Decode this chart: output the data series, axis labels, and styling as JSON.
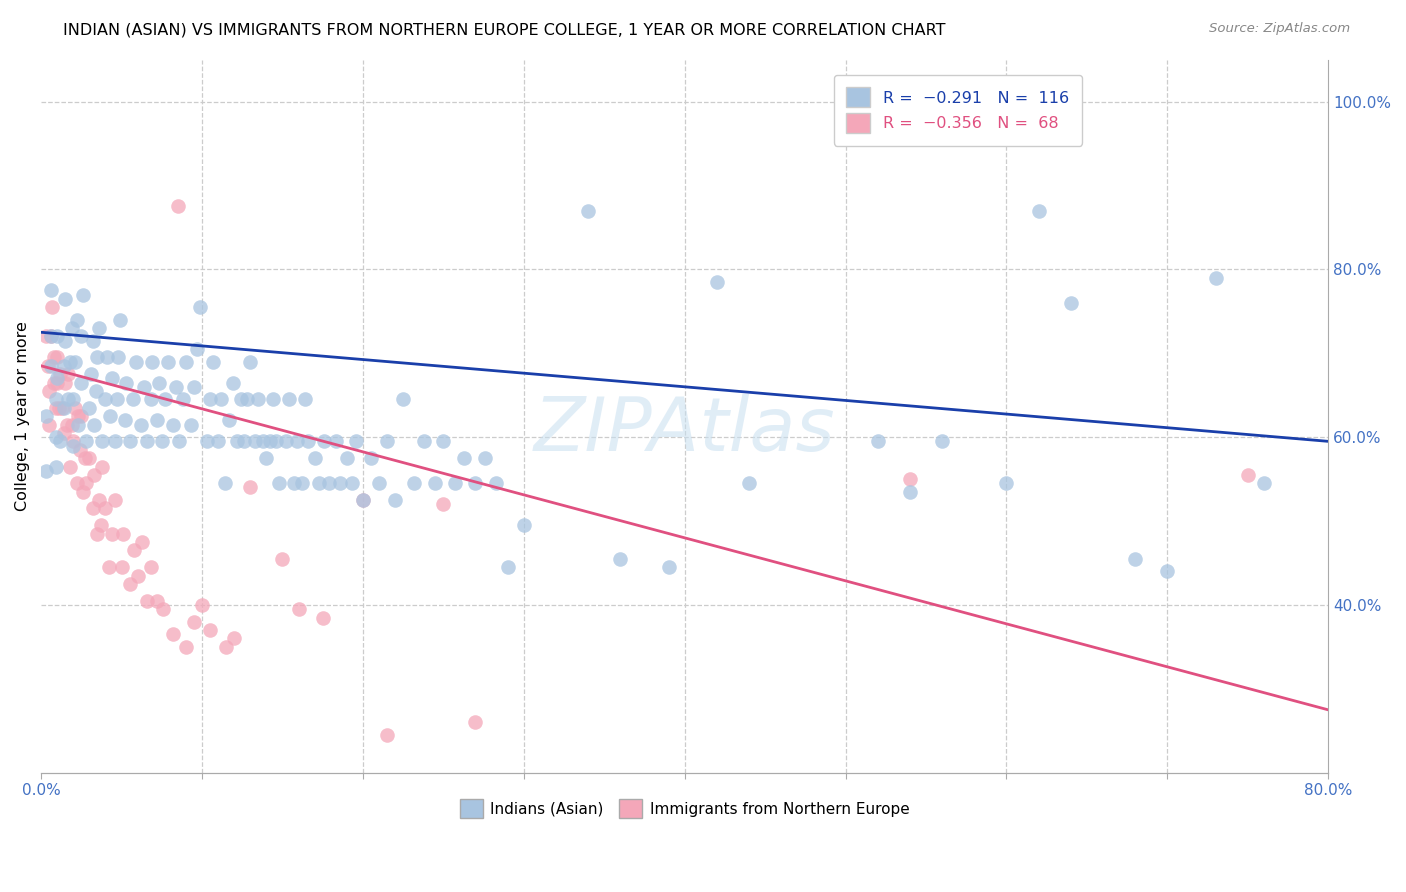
{
  "title": "INDIAN (ASIAN) VS IMMIGRANTS FROM NORTHERN EUROPE COLLEGE, 1 YEAR OR MORE CORRELATION CHART",
  "source": "Source: ZipAtlas.com",
  "ylabel": "College, 1 year or more",
  "xlim": [
    0.0,
    0.8
  ],
  "ylim": [
    0.2,
    1.05
  ],
  "xticks": [
    0.0,
    0.1,
    0.2,
    0.3,
    0.4,
    0.5,
    0.6,
    0.7,
    0.8
  ],
  "xticklabels": [
    "0.0%",
    "",
    "",
    "",
    "",
    "",
    "",
    "",
    "80.0%"
  ],
  "yticks_right": [
    0.4,
    0.6,
    0.8,
    1.0
  ],
  "yticklabels_right": [
    "40.0%",
    "60.0%",
    "80.0%",
    "100.0%"
  ],
  "blue_color": "#a8c4e0",
  "pink_color": "#f4a7b9",
  "blue_line_color": "#1a3faa",
  "pink_line_color": "#e05080",
  "watermark": "ZIPAtlas",
  "blue_line_y_start": 0.725,
  "blue_line_y_end": 0.595,
  "pink_line_y_start": 0.685,
  "pink_line_y_end": 0.275,
  "blue_scatter": [
    [
      0.003,
      0.56
    ],
    [
      0.003,
      0.625
    ],
    [
      0.006,
      0.685
    ],
    [
      0.006,
      0.72
    ],
    [
      0.006,
      0.775
    ],
    [
      0.009,
      0.6
    ],
    [
      0.009,
      0.645
    ],
    [
      0.009,
      0.565
    ],
    [
      0.01,
      0.72
    ],
    [
      0.01,
      0.67
    ],
    [
      0.012,
      0.595
    ],
    [
      0.014,
      0.635
    ],
    [
      0.014,
      0.685
    ],
    [
      0.015,
      0.715
    ],
    [
      0.015,
      0.765
    ],
    [
      0.017,
      0.645
    ],
    [
      0.018,
      0.69
    ],
    [
      0.019,
      0.73
    ],
    [
      0.02,
      0.59
    ],
    [
      0.02,
      0.645
    ],
    [
      0.021,
      0.69
    ],
    [
      0.022,
      0.74
    ],
    [
      0.023,
      0.615
    ],
    [
      0.025,
      0.665
    ],
    [
      0.025,
      0.72
    ],
    [
      0.026,
      0.77
    ],
    [
      0.028,
      0.595
    ],
    [
      0.03,
      0.635
    ],
    [
      0.031,
      0.675
    ],
    [
      0.032,
      0.715
    ],
    [
      0.033,
      0.615
    ],
    [
      0.034,
      0.655
    ],
    [
      0.035,
      0.695
    ],
    [
      0.036,
      0.73
    ],
    [
      0.038,
      0.595
    ],
    [
      0.04,
      0.645
    ],
    [
      0.041,
      0.695
    ],
    [
      0.043,
      0.625
    ],
    [
      0.044,
      0.67
    ],
    [
      0.046,
      0.595
    ],
    [
      0.047,
      0.645
    ],
    [
      0.048,
      0.695
    ],
    [
      0.049,
      0.74
    ],
    [
      0.052,
      0.62
    ],
    [
      0.053,
      0.665
    ],
    [
      0.055,
      0.595
    ],
    [
      0.057,
      0.645
    ],
    [
      0.059,
      0.69
    ],
    [
      0.062,
      0.615
    ],
    [
      0.064,
      0.66
    ],
    [
      0.066,
      0.595
    ],
    [
      0.068,
      0.645
    ],
    [
      0.069,
      0.69
    ],
    [
      0.072,
      0.62
    ],
    [
      0.073,
      0.665
    ],
    [
      0.075,
      0.595
    ],
    [
      0.077,
      0.645
    ],
    [
      0.079,
      0.69
    ],
    [
      0.082,
      0.615
    ],
    [
      0.084,
      0.66
    ],
    [
      0.086,
      0.595
    ],
    [
      0.088,
      0.645
    ],
    [
      0.09,
      0.69
    ],
    [
      0.093,
      0.615
    ],
    [
      0.095,
      0.66
    ],
    [
      0.097,
      0.705
    ],
    [
      0.099,
      0.755
    ],
    [
      0.103,
      0.595
    ],
    [
      0.105,
      0.645
    ],
    [
      0.107,
      0.69
    ],
    [
      0.11,
      0.595
    ],
    [
      0.112,
      0.645
    ],
    [
      0.114,
      0.545
    ],
    [
      0.117,
      0.62
    ],
    [
      0.119,
      0.665
    ],
    [
      0.122,
      0.595
    ],
    [
      0.124,
      0.645
    ],
    [
      0.126,
      0.595
    ],
    [
      0.128,
      0.645
    ],
    [
      0.13,
      0.69
    ],
    [
      0.133,
      0.595
    ],
    [
      0.135,
      0.645
    ],
    [
      0.138,
      0.595
    ],
    [
      0.14,
      0.575
    ],
    [
      0.142,
      0.595
    ],
    [
      0.144,
      0.645
    ],
    [
      0.146,
      0.595
    ],
    [
      0.148,
      0.545
    ],
    [
      0.152,
      0.595
    ],
    [
      0.154,
      0.645
    ],
    [
      0.157,
      0.545
    ],
    [
      0.159,
      0.595
    ],
    [
      0.162,
      0.545
    ],
    [
      0.164,
      0.645
    ],
    [
      0.166,
      0.595
    ],
    [
      0.17,
      0.575
    ],
    [
      0.173,
      0.545
    ],
    [
      0.176,
      0.595
    ],
    [
      0.179,
      0.545
    ],
    [
      0.183,
      0.595
    ],
    [
      0.186,
      0.545
    ],
    [
      0.19,
      0.575
    ],
    [
      0.193,
      0.545
    ],
    [
      0.196,
      0.595
    ],
    [
      0.2,
      0.525
    ],
    [
      0.205,
      0.575
    ],
    [
      0.21,
      0.545
    ],
    [
      0.215,
      0.595
    ],
    [
      0.22,
      0.525
    ],
    [
      0.225,
      0.645
    ],
    [
      0.232,
      0.545
    ],
    [
      0.238,
      0.595
    ],
    [
      0.245,
      0.545
    ],
    [
      0.25,
      0.595
    ],
    [
      0.257,
      0.545
    ],
    [
      0.263,
      0.575
    ],
    [
      0.27,
      0.545
    ],
    [
      0.276,
      0.575
    ],
    [
      0.283,
      0.545
    ],
    [
      0.29,
      0.445
    ],
    [
      0.3,
      0.495
    ],
    [
      0.34,
      0.87
    ],
    [
      0.36,
      0.455
    ],
    [
      0.39,
      0.445
    ],
    [
      0.42,
      0.785
    ],
    [
      0.44,
      0.545
    ],
    [
      0.52,
      0.595
    ],
    [
      0.54,
      0.535
    ],
    [
      0.56,
      0.595
    ],
    [
      0.6,
      0.545
    ],
    [
      0.62,
      0.87
    ],
    [
      0.64,
      0.76
    ],
    [
      0.68,
      0.455
    ],
    [
      0.7,
      0.44
    ],
    [
      0.73,
      0.79
    ],
    [
      0.76,
      0.545
    ]
  ],
  "pink_scatter": [
    [
      0.003,
      0.72
    ],
    [
      0.004,
      0.685
    ],
    [
      0.005,
      0.655
    ],
    [
      0.005,
      0.615
    ],
    [
      0.006,
      0.72
    ],
    [
      0.007,
      0.755
    ],
    [
      0.008,
      0.695
    ],
    [
      0.008,
      0.665
    ],
    [
      0.009,
      0.635
    ],
    [
      0.01,
      0.665
    ],
    [
      0.01,
      0.695
    ],
    [
      0.011,
      0.635
    ],
    [
      0.012,
      0.675
    ],
    [
      0.013,
      0.635
    ],
    [
      0.014,
      0.605
    ],
    [
      0.015,
      0.665
    ],
    [
      0.016,
      0.615
    ],
    [
      0.017,
      0.675
    ],
    [
      0.018,
      0.565
    ],
    [
      0.019,
      0.615
    ],
    [
      0.02,
      0.595
    ],
    [
      0.021,
      0.635
    ],
    [
      0.022,
      0.545
    ],
    [
      0.023,
      0.625
    ],
    [
      0.024,
      0.585
    ],
    [
      0.025,
      0.625
    ],
    [
      0.026,
      0.535
    ],
    [
      0.027,
      0.575
    ],
    [
      0.028,
      0.545
    ],
    [
      0.03,
      0.575
    ],
    [
      0.032,
      0.515
    ],
    [
      0.033,
      0.555
    ],
    [
      0.035,
      0.485
    ],
    [
      0.036,
      0.525
    ],
    [
      0.037,
      0.495
    ],
    [
      0.038,
      0.565
    ],
    [
      0.04,
      0.515
    ],
    [
      0.042,
      0.445
    ],
    [
      0.044,
      0.485
    ],
    [
      0.046,
      0.525
    ],
    [
      0.05,
      0.445
    ],
    [
      0.051,
      0.485
    ],
    [
      0.055,
      0.425
    ],
    [
      0.058,
      0.465
    ],
    [
      0.06,
      0.435
    ],
    [
      0.063,
      0.475
    ],
    [
      0.066,
      0.405
    ],
    [
      0.068,
      0.445
    ],
    [
      0.072,
      0.405
    ],
    [
      0.076,
      0.395
    ],
    [
      0.082,
      0.365
    ],
    [
      0.085,
      0.875
    ],
    [
      0.09,
      0.35
    ],
    [
      0.095,
      0.38
    ],
    [
      0.1,
      0.4
    ],
    [
      0.105,
      0.37
    ],
    [
      0.115,
      0.35
    ],
    [
      0.12,
      0.36
    ],
    [
      0.13,
      0.54
    ],
    [
      0.15,
      0.455
    ],
    [
      0.16,
      0.395
    ],
    [
      0.175,
      0.385
    ],
    [
      0.2,
      0.525
    ],
    [
      0.215,
      0.245
    ],
    [
      0.25,
      0.52
    ],
    [
      0.27,
      0.26
    ],
    [
      0.54,
      0.55
    ],
    [
      0.75,
      0.555
    ]
  ]
}
